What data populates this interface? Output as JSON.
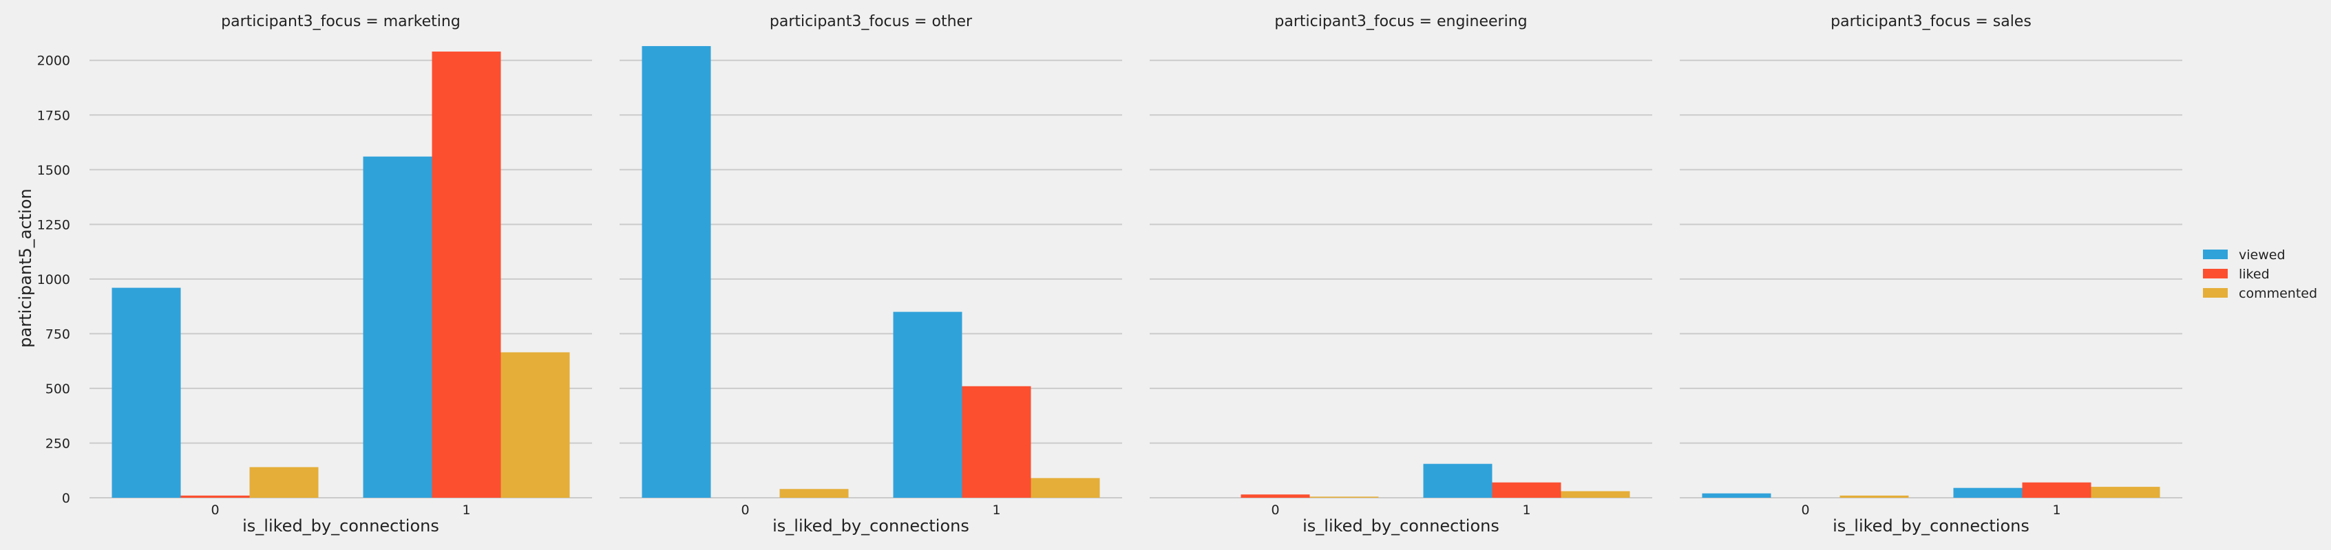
{
  "chart_data": {
    "type": "bar",
    "facet_variable": "participant3_focus",
    "ylabel": "participant5_action",
    "xlabel": "is_liked_by_connections",
    "ylim": [
      0,
      2150
    ],
    "yticks": [
      0,
      250,
      500,
      750,
      1000,
      1250,
      1500,
      1750,
      2000
    ],
    "categories": [
      "0",
      "1"
    ],
    "grid": true,
    "legend_placement": "right",
    "series_meta": [
      {
        "name": "viewed",
        "color": "#30a2da"
      },
      {
        "name": "liked",
        "color": "#fc4f30"
      },
      {
        "name": "commented",
        "color": "#e5ae38"
      }
    ],
    "panels": [
      {
        "title": "participant3_focus = marketing",
        "series": [
          {
            "name": "viewed",
            "values": [
              960,
              1560
            ]
          },
          {
            "name": "liked",
            "values": [
              10,
              2040
            ]
          },
          {
            "name": "commented",
            "values": [
              140,
              665
            ]
          }
        ]
      },
      {
        "title": "participant3_focus = other",
        "series": [
          {
            "name": "viewed",
            "values": [
              2065,
              850
            ]
          },
          {
            "name": "liked",
            "values": [
              0,
              510
            ]
          },
          {
            "name": "commented",
            "values": [
              40,
              90
            ]
          }
        ]
      },
      {
        "title": "participant3_focus = engineering",
        "series": [
          {
            "name": "viewed",
            "values": [
              0,
              155
            ]
          },
          {
            "name": "liked",
            "values": [
              15,
              70
            ]
          },
          {
            "name": "commented",
            "values": [
              5,
              30
            ]
          }
        ]
      },
      {
        "title": "participant3_focus = sales",
        "series": [
          {
            "name": "viewed",
            "values": [
              20,
              45
            ]
          },
          {
            "name": "liked",
            "values": [
              0,
              70
            ]
          },
          {
            "name": "commented",
            "values": [
              10,
              50
            ]
          }
        ]
      }
    ]
  }
}
